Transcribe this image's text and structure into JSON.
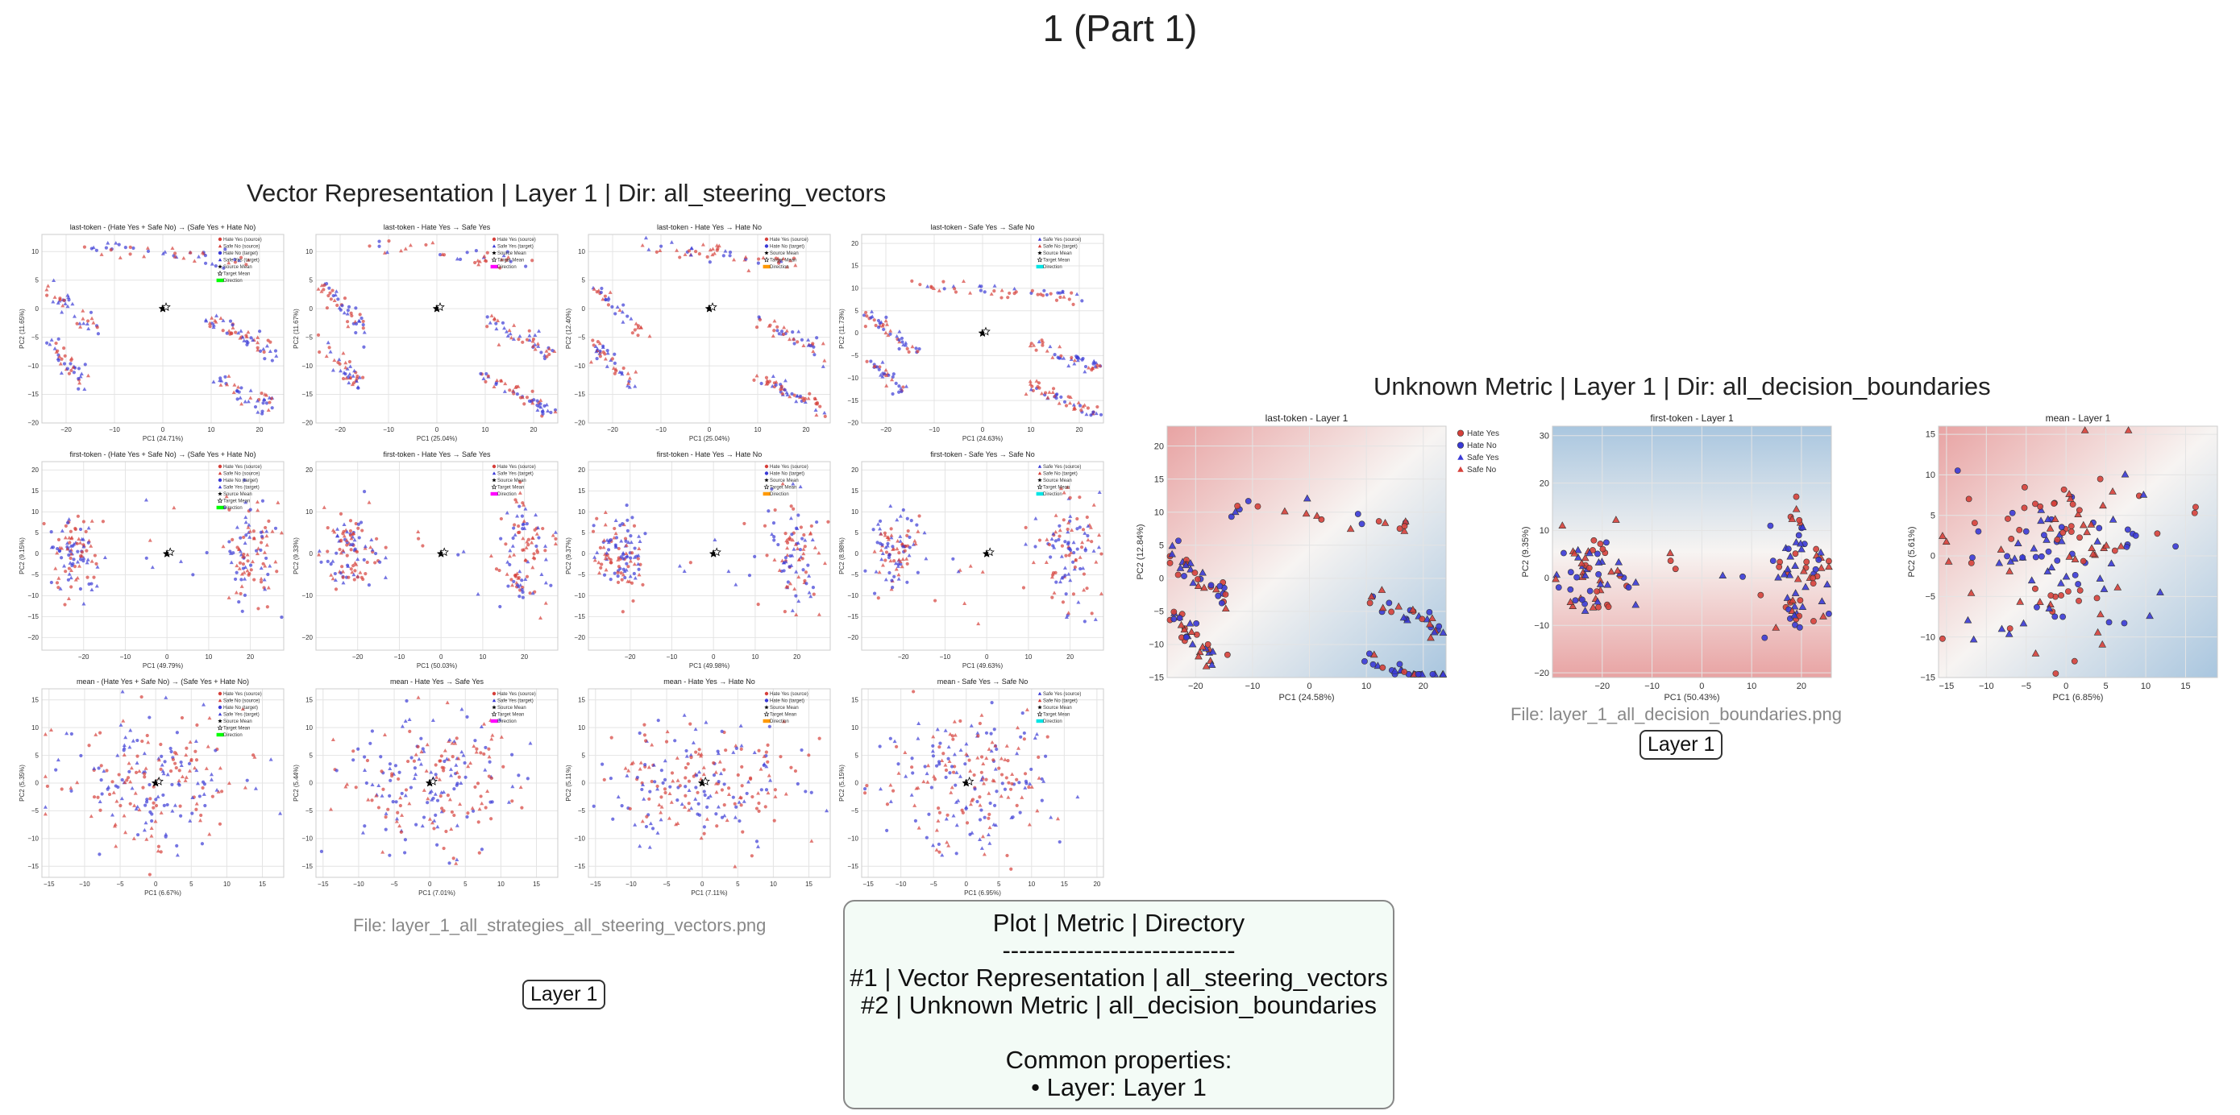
{
  "page_title": "1 (Part 1)",
  "colors": {
    "hate_yes": "#d6403a",
    "hate_no": "#3a3ad6",
    "safe_yes": "#3a3ad6",
    "safe_no": "#d6403a",
    "source_mean": "#000000",
    "target_mean": "#ffffff",
    "direction_magenta": "#ff00ff",
    "direction_orange": "#ff9900",
    "direction_cyan": "#00e5e5",
    "direction_green": "#00ff00"
  },
  "icons": {
    "circle": "circle-marker-icon",
    "triangle": "triangle-marker-icon",
    "star": "star-marker-icon",
    "rect": "direction-swatch-icon"
  },
  "steering_group": {
    "title": "Vector Representation | Layer 1 | Dir: all_steering_vectors",
    "file_caption": "File: layer_1_all_strategies_all_steering_vectors.png",
    "layer_badge": "Layer 1"
  },
  "boundary_group": {
    "title": "Unknown Metric | Layer 1 | Dir: all_decision_boundaries",
    "file_caption": "File: layer_1_all_decision_boundaries.png",
    "layer_badge": "Layer 1"
  },
  "legend_box": {
    "header": "Plot | Metric | Directory",
    "separator": "----------------------------",
    "line1": "#1 | Vector Representation | all_steering_vectors",
    "line2": "#2 | Unknown Metric | all_decision_boundaries",
    "common_label": "Common properties:",
    "common_item": "• Layer: Layer 1"
  },
  "chart_data": [
    {
      "type": "scatter",
      "title": "last-token - (Hate Yes + Safe No) → (Safe Yes + Hate No)",
      "xlabel": "PC1 (24.71%)",
      "ylabel": "PC2 (11.65%)",
      "xlim": [
        -25,
        25
      ],
      "ylim": [
        -20,
        13
      ],
      "xticks": [
        -20,
        -10,
        0,
        10,
        20
      ],
      "yticks": [
        -20,
        -15,
        -10,
        -5,
        0,
        5,
        10
      ],
      "legend": [
        "Hate Yes (source)",
        "Safe No (source)",
        "Hate No (target)",
        "Safe Yes (target)",
        "Source Mean",
        "Target Mean",
        "Direction"
      ],
      "direction_color": "green",
      "pattern": "bands"
    },
    {
      "type": "scatter",
      "title": "last-token - Hate Yes → Safe Yes",
      "xlabel": "PC1 (25.04%)",
      "ylabel": "PC2 (11.67%)",
      "xlim": [
        -25,
        25
      ],
      "ylim": [
        -20,
        13
      ],
      "xticks": [
        -20,
        -10,
        0,
        10,
        20
      ],
      "yticks": [
        -20,
        -15,
        -10,
        -5,
        0,
        5,
        10
      ],
      "legend": [
        "Hate Yes (source)",
        "Safe Yes (target)",
        "Source Mean",
        "Target Mean",
        "Direction"
      ],
      "direction_color": "magenta",
      "pattern": "bands"
    },
    {
      "type": "scatter",
      "title": "last-token - Hate Yes → Hate No",
      "xlabel": "PC1 (25.04%)",
      "ylabel": "PC2 (12.40%)",
      "xlim": [
        -25,
        25
      ],
      "ylim": [
        -20,
        13
      ],
      "xticks": [
        -20,
        -10,
        0,
        10,
        20
      ],
      "yticks": [
        -20,
        -15,
        -10,
        -5,
        0,
        5,
        10
      ],
      "legend": [
        "Hate Yes (source)",
        "Hate No (target)",
        "Source Mean",
        "Target Mean",
        "Direction"
      ],
      "direction_color": "orange",
      "pattern": "bands"
    },
    {
      "type": "scatter",
      "title": "last-token - Safe Yes → Safe No",
      "xlabel": "PC1 (24.63%)",
      "ylabel": "PC2 (11.73%)",
      "xlim": [
        -25,
        25
      ],
      "ylim": [
        -20,
        22
      ],
      "xticks": [
        -20,
        -10,
        0,
        10,
        20
      ],
      "yticks": [
        -20,
        -15,
        -10,
        -5,
        0,
        5,
        10,
        15,
        20
      ],
      "legend": [
        "Safe Yes (source)",
        "Safe No (target)",
        "Source Mean",
        "Target Mean",
        "Direction"
      ],
      "direction_color": "cyan",
      "pattern": "bands"
    },
    {
      "type": "scatter",
      "title": "first-token - (Hate Yes + Safe No) → (Safe Yes + Hate No)",
      "xlabel": "PC1 (49.79%)",
      "ylabel": "PC2 (9.15%)",
      "xlim": [
        -30,
        28
      ],
      "ylim": [
        -23,
        22
      ],
      "xticks": [
        -20,
        -10,
        0,
        10,
        20
      ],
      "yticks": [
        -20,
        -15,
        -10,
        -5,
        0,
        5,
        10,
        15,
        20
      ],
      "legend": [
        "Hate Yes (source)",
        "Safe No (source)",
        "Hate No (target)",
        "Safe Yes (target)",
        "Source Mean",
        "Target Mean",
        "Direction"
      ],
      "direction_color": "green",
      "pattern": "clusters"
    },
    {
      "type": "scatter",
      "title": "first-token - Hate Yes → Safe Yes",
      "xlabel": "PC1 (50.03%)",
      "ylabel": "PC2 (9.33%)",
      "xlim": [
        -30,
        28
      ],
      "ylim": [
        -23,
        22
      ],
      "xticks": [
        -20,
        -10,
        0,
        10,
        20
      ],
      "yticks": [
        -20,
        -10,
        0,
        10,
        20
      ],
      "legend": [
        "Hate Yes (source)",
        "Safe Yes (target)",
        "Source Mean",
        "Target Mean",
        "Direction"
      ],
      "direction_color": "magenta",
      "pattern": "clusters"
    },
    {
      "type": "scatter",
      "title": "first-token - Hate Yes → Hate No",
      "xlabel": "PC1 (49.98%)",
      "ylabel": "PC2 (9.37%)",
      "xlim": [
        -30,
        28
      ],
      "ylim": [
        -23,
        22
      ],
      "xticks": [
        -20,
        -10,
        0,
        10,
        20
      ],
      "yticks": [
        -20,
        -15,
        -10,
        -5,
        0,
        5,
        10,
        15,
        20
      ],
      "legend": [
        "Hate Yes (source)",
        "Hate No (target)",
        "Source Mean",
        "Target Mean",
        "Direction"
      ],
      "direction_color": "orange",
      "pattern": "clusters"
    },
    {
      "type": "scatter",
      "title": "first-token - Safe Yes → Safe No",
      "xlabel": "PC1 (49.63%)",
      "ylabel": "PC2 (8.98%)",
      "xlim": [
        -30,
        28
      ],
      "ylim": [
        -23,
        22
      ],
      "xticks": [
        -20,
        -10,
        0,
        10,
        20
      ],
      "yticks": [
        -20,
        -15,
        -10,
        -5,
        0,
        5,
        10,
        15,
        20
      ],
      "legend": [
        "Safe Yes (source)",
        "Safe No (target)",
        "Source Mean",
        "Target Mean",
        "Direction"
      ],
      "direction_color": "cyan",
      "pattern": "clusters"
    },
    {
      "type": "scatter",
      "title": "mean - (Hate Yes + Safe No) → (Safe Yes + Hate No)",
      "xlabel": "PC1 (6.67%)",
      "ylabel": "PC2 (5.35%)",
      "xlim": [
        -16,
        18
      ],
      "ylim": [
        -17,
        17
      ],
      "xticks": [
        -15,
        -10,
        -5,
        0,
        5,
        10,
        15
      ],
      "yticks": [
        -15,
        -10,
        -5,
        0,
        5,
        10,
        15
      ],
      "legend": [
        "Hate Yes (source)",
        "Safe No (source)",
        "Hate No (target)",
        "Safe Yes (target)",
        "Source Mean",
        "Target Mean",
        "Direction"
      ],
      "direction_color": "green",
      "pattern": "cloud"
    },
    {
      "type": "scatter",
      "title": "mean - Hate Yes → Safe Yes",
      "xlabel": "PC1 (7.01%)",
      "ylabel": "PC2 (5.44%)",
      "xlim": [
        -16,
        18
      ],
      "ylim": [
        -17,
        17
      ],
      "xticks": [
        -15,
        -10,
        -5,
        0,
        5,
        10,
        15
      ],
      "yticks": [
        -15,
        -10,
        -5,
        0,
        5,
        10,
        15
      ],
      "legend": [
        "Hate Yes (source)",
        "Safe Yes (target)",
        "Source Mean",
        "Target Mean",
        "Direction"
      ],
      "direction_color": "magenta",
      "pattern": "cloud"
    },
    {
      "type": "scatter",
      "title": "mean - Hate Yes → Hate No",
      "xlabel": "PC1 (7.11%)",
      "ylabel": "PC2 (5.11%)",
      "xlim": [
        -16,
        18
      ],
      "ylim": [
        -17,
        17
      ],
      "xticks": [
        -15,
        -10,
        -5,
        0,
        5,
        10,
        15
      ],
      "yticks": [
        -15,
        -10,
        -5,
        0,
        5,
        10,
        15
      ],
      "legend": [
        "Hate Yes (source)",
        "Hate No (target)",
        "Source Mean",
        "Target Mean",
        "Direction"
      ],
      "direction_color": "orange",
      "pattern": "cloud"
    },
    {
      "type": "scatter",
      "title": "mean - Safe Yes → Safe No",
      "xlabel": "PC1 (6.95%)",
      "ylabel": "PC2 (5.15%)",
      "xlim": [
        -16,
        21
      ],
      "ylim": [
        -17,
        17
      ],
      "xticks": [
        -15,
        -10,
        -5,
        0,
        5,
        10,
        15,
        20
      ],
      "yticks": [
        -15,
        -10,
        -5,
        0,
        5,
        10,
        15
      ],
      "legend": [
        "Safe Yes (source)",
        "Safe No (target)",
        "Source Mean",
        "Target Mean",
        "Direction"
      ],
      "direction_color": "cyan",
      "pattern": "cloud"
    },
    {
      "type": "scatter",
      "title": "last-token - Layer 1",
      "xlabel": "PC1 (24.58%)",
      "ylabel": "PC2 (12.84%)",
      "xlim": [
        -25,
        24
      ],
      "ylim": [
        -15,
        23
      ],
      "xticks": [
        -20,
        -10,
        0,
        10,
        20
      ],
      "yticks": [
        -15,
        -10,
        -5,
        0,
        5,
        10,
        15,
        20
      ],
      "legend": [
        "Hate Yes",
        "Hate No",
        "Safe Yes",
        "Safe No"
      ],
      "background": "decision-boundary",
      "pattern": "bands"
    },
    {
      "type": "scatter",
      "title": "first-token - Layer 1",
      "xlabel": "PC1 (50.43%)",
      "ylabel": "PC2 (9.35%)",
      "xlim": [
        -30,
        26
      ],
      "ylim": [
        -21,
        32
      ],
      "xticks": [
        -20,
        -10,
        0,
        10,
        20
      ],
      "yticks": [
        -20,
        -10,
        0,
        10,
        20,
        30
      ],
      "legend": [],
      "background": "decision-boundary",
      "pattern": "clusters"
    },
    {
      "type": "scatter",
      "title": "mean - Layer 1",
      "xlabel": "PC1 (6.85%)",
      "ylabel": "PC2 (5.61%)",
      "xlim": [
        -16,
        19
      ],
      "ylim": [
        -15,
        16
      ],
      "xticks": [
        -15,
        -10,
        -5,
        0,
        5,
        10,
        15
      ],
      "yticks": [
        -15,
        -10,
        -5,
        0,
        5,
        10,
        15
      ],
      "legend": [],
      "background": "decision-boundary",
      "pattern": "cloud"
    }
  ]
}
